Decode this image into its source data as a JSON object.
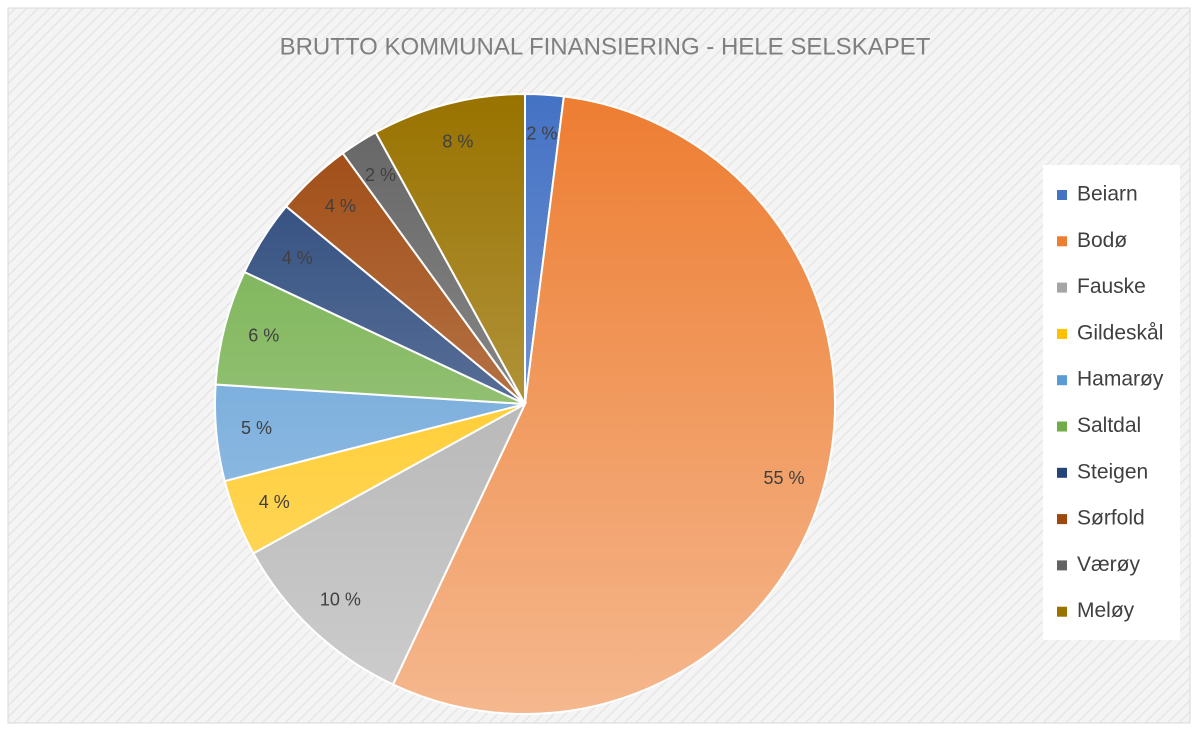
{
  "chart_data": {
    "type": "pie",
    "title": "BRUTTO KOMMUNAL FINANSIERING - HELE SELSKAPET",
    "categories": [
      "Beiarn",
      "Bodø",
      "Fauske",
      "Gildeskål",
      "Hamarøy",
      "Saltdal",
      "Steigen",
      "Sørfold",
      "Værøy",
      "Meløy"
    ],
    "values": [
      2,
      55,
      10,
      4,
      5,
      6,
      4,
      4,
      2,
      8
    ],
    "value_labels": [
      "2 %",
      "55 %",
      "10 %",
      "4 %",
      "5 %",
      "6 %",
      "4 %",
      "4 %",
      "2 %",
      "8 %"
    ],
    "colors": [
      "#4472c4",
      "#ed7d31",
      "#a5a5a5",
      "#ffc000",
      "#5b9bd5",
      "#70ad47",
      "#264478",
      "#9e480e",
      "#636363",
      "#997300"
    ],
    "legend": "right"
  }
}
